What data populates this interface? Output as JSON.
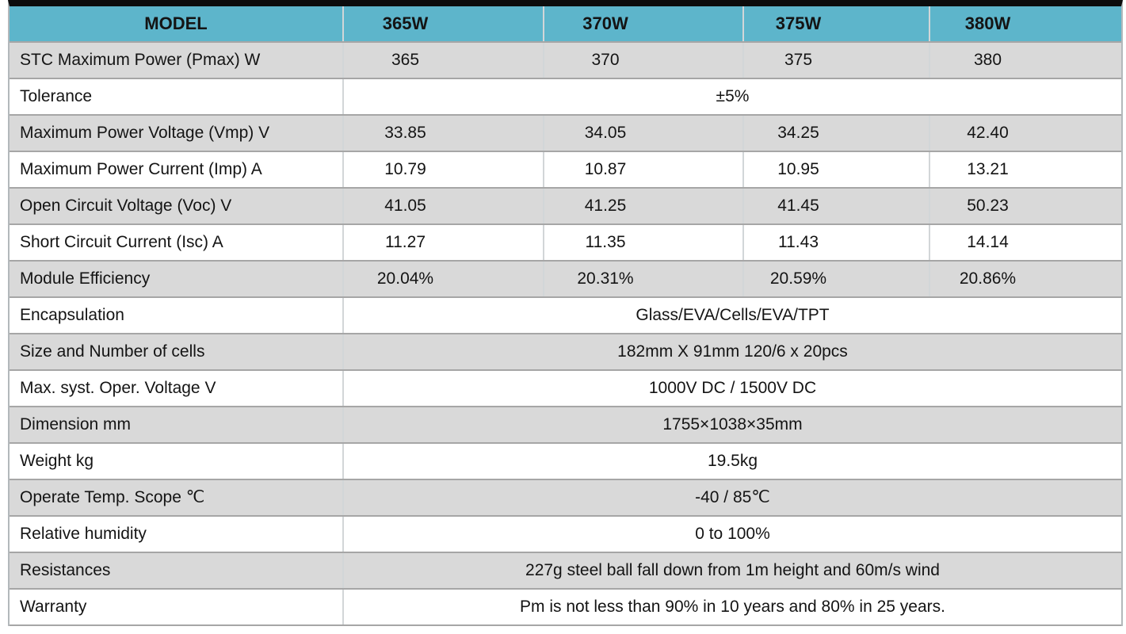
{
  "table": {
    "header": {
      "model_label": "MODEL",
      "columns": [
        "365W",
        "370W",
        "375W",
        "380W"
      ]
    },
    "rows": [
      {
        "label": "STC Maximum Power (Pmax) W",
        "shade": "gray",
        "values": [
          "365",
          "370",
          "375",
          "380"
        ]
      },
      {
        "label": "Tolerance",
        "shade": "white",
        "merged": "±5%"
      },
      {
        "label": "Maximum Power Voltage (Vmp) V",
        "shade": "gray",
        "values": [
          "33.85",
          "34.05",
          "34.25",
          "42.40"
        ]
      },
      {
        "label": "Maximum Power Current (Imp) A",
        "shade": "white",
        "values": [
          "10.79",
          "10.87",
          "10.95",
          "13.21"
        ]
      },
      {
        "label": "Open Circuit Voltage (Voc) V",
        "shade": "gray",
        "values": [
          "41.05",
          "41.25",
          "41.45",
          "50.23"
        ]
      },
      {
        "label": "Short Circuit Current (Isc) A",
        "shade": "white",
        "values": [
          "11.27",
          "11.35",
          "11.43",
          "14.14"
        ]
      },
      {
        "label": "Module Efficiency",
        "shade": "gray",
        "values": [
          "20.04%",
          "20.31%",
          "20.59%",
          "20.86%"
        ]
      },
      {
        "label": "Encapsulation",
        "shade": "white",
        "merged": "Glass/EVA/Cells/EVA/TPT"
      },
      {
        "label": "Size and Number of cells",
        "shade": "gray",
        "merged": "182mm X 91mm 120/6 x 20pcs"
      },
      {
        "label": "Max. syst. Oper. Voltage V",
        "shade": "white",
        "merged": "1000V DC / 1500V DC"
      },
      {
        "label": "Dimension mm",
        "shade": "gray",
        "merged": "1755×1038×35mm"
      },
      {
        "label": "Weight kg",
        "shade": "white",
        "merged": "19.5kg"
      },
      {
        "label": "Operate Temp. Scope ℃",
        "shade": "gray",
        "merged": "-40 / 85℃"
      },
      {
        "label": "Relative humidity",
        "shade": "white",
        "merged": "0 to 100%"
      },
      {
        "label": "Resistances",
        "shade": "gray",
        "merged": "227g steel ball fall down from 1m height and 60m/s wind"
      },
      {
        "label": "Warranty",
        "shade": "white",
        "merged": "Pm is not less than 90% in 10 years and 80% in 25 years."
      }
    ],
    "colors": {
      "header_bg": "#5db5cb",
      "row_gray": "#d9d9d9",
      "row_white": "#ffffff",
      "top_bar": "#0c0c0c",
      "grid_horizontal": "#a6a6a6",
      "grid_vertical": "#d2d6d8",
      "text": "#141414"
    }
  }
}
